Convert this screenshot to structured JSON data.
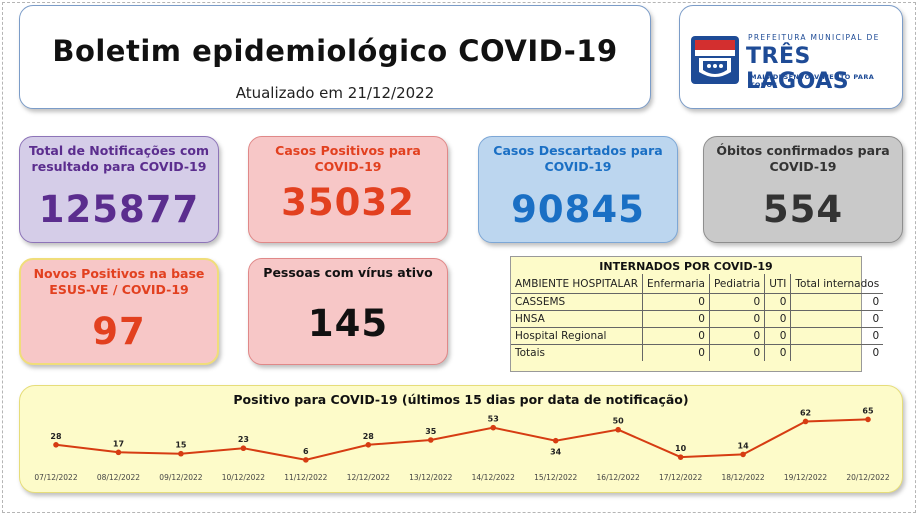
{
  "header": {
    "title": "Boletim epidemiológico COVID-19",
    "updated": "Atualizado em 21/12/2022"
  },
  "logo": {
    "line1": "PREFEITURA MUNICIPAL DE",
    "line2": "TRÊS LAGOAS",
    "line3": "MAIS DESENVOLVIMENTO PARA TODOS"
  },
  "cards": {
    "total": {
      "title": "Total de Notificações com resultado para COVID-19",
      "value": "125877"
    },
    "positivos": {
      "title": "Casos Positivos para COVID-19",
      "value": "35032"
    },
    "descartados": {
      "title": "Casos Descartados para COVID-19",
      "value": "90845"
    },
    "obitos": {
      "title": "Óbitos confirmados para COVID-19",
      "value": "554"
    },
    "novos": {
      "title": "Novos Positivos na base ESUS-VE / COVID-19",
      "value": "97"
    },
    "ativos": {
      "title": "Pessoas com vírus ativo",
      "value": "145"
    }
  },
  "internados": {
    "title": "INTERNADOS POR COVID-19",
    "headers": [
      "AMBIENTE HOSPITALAR",
      "Enfermaria",
      "Pediatria",
      "UTI",
      "Total internados"
    ],
    "rows": [
      [
        "CASSEMS",
        "0",
        "0",
        "0",
        "0"
      ],
      [
        "HNSA",
        "0",
        "0",
        "0",
        "0"
      ],
      [
        "Hospital Regional",
        "0",
        "0",
        "0",
        "0"
      ],
      [
        "Totais",
        "0",
        "0",
        "0",
        "0"
      ]
    ]
  },
  "colors": {
    "purple_bg": "#d5cde8",
    "purple_text": "#5b2d8e",
    "red_bg": "#f7c7c7",
    "red_text": "#e2401f",
    "blue_bg": "#bcd6ef",
    "blue_text": "#1a6fc4",
    "gray_bg": "#c9c9c9",
    "gray_text": "#333333",
    "yellow_bg": "#fdfbc9",
    "line": "#d63c12"
  },
  "chart_data": {
    "type": "line",
    "title": "Positivo para COVID-19 (últimos 15 dias por data de notificação)",
    "categories": [
      "07/12/2022",
      "08/12/2022",
      "09/12/2022",
      "10/12/2022",
      "11/12/2022",
      "12/12/2022",
      "13/12/2022",
      "14/12/2022",
      "15/12/2022",
      "16/12/2022",
      "17/12/2022",
      "18/12/2022",
      "19/12/2022",
      "20/12/2022"
    ],
    "values": [
      28,
      17,
      15,
      23,
      6,
      28,
      35,
      53,
      34,
      50,
      10,
      14,
      62,
      65
    ],
    "ylim": [
      0,
      70
    ],
    "grid": false
  }
}
